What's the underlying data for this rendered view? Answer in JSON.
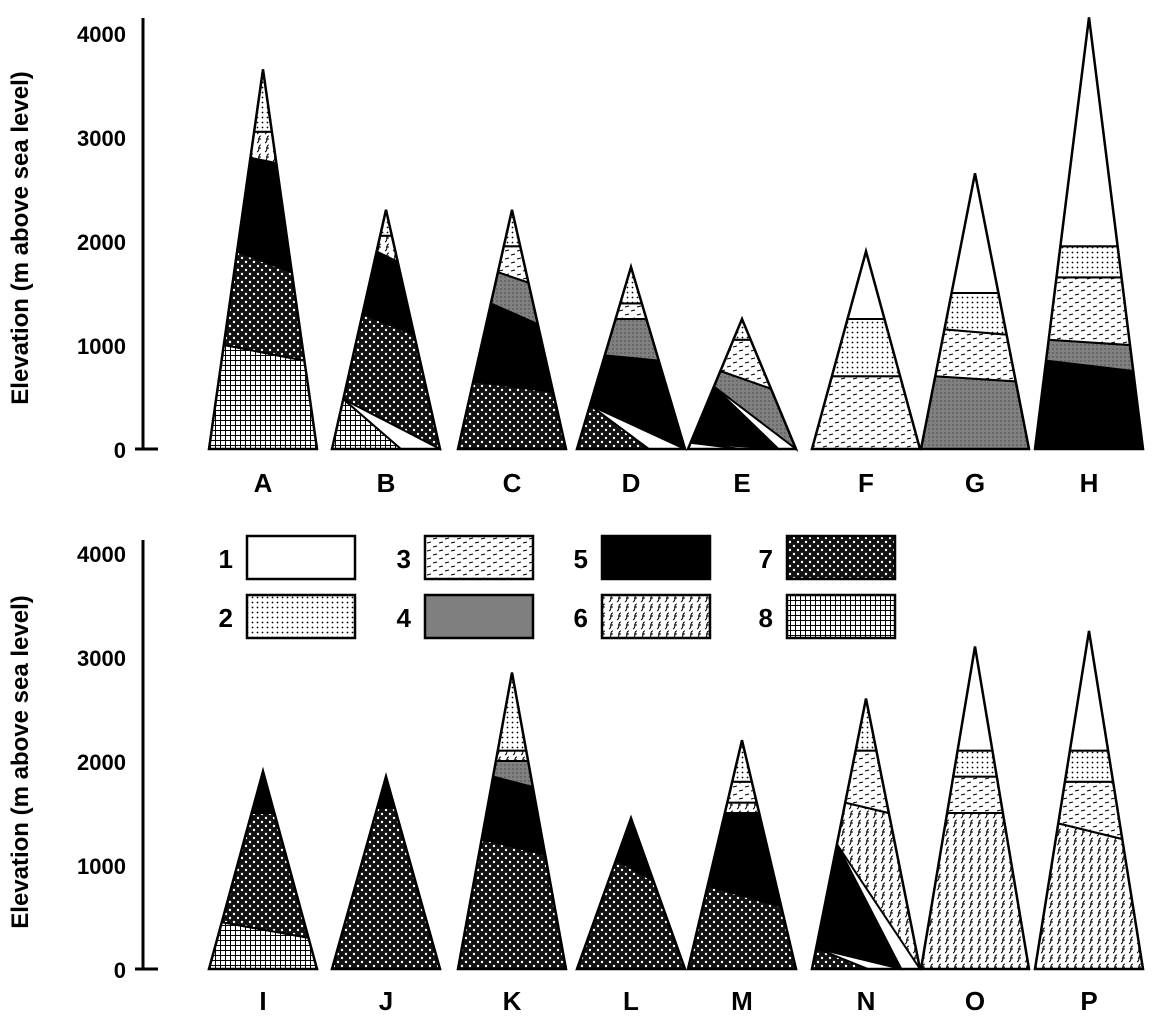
{
  "chart_data": [
    {
      "type": "area",
      "title": "",
      "xlabel": "",
      "ylabel": "Elevation (m above sea level)",
      "ylim": [
        0,
        4200
      ],
      "yticks": [
        0,
        1000,
        2000,
        3000,
        4000
      ],
      "mountains": [
        {
          "name": "A",
          "height": 3650,
          "zones": [
            {
              "zone": 8,
              "l": 0,
              "r": 0,
              "l_top": 1000,
              "r_top": 850
            },
            {
              "zone": 7,
              "l_top": 1900,
              "r_top": 1700
            },
            {
              "zone": 5,
              "l_top": 2800,
              "r_top": 2750
            },
            {
              "zone": 6,
              "l_top": 3050,
              "r_top": 3050
            },
            {
              "zone": 2,
              "l_top": 3650,
              "r_top": 3650
            }
          ]
        },
        {
          "name": "B",
          "height": 2300,
          "zones": [
            {
              "zone": 8,
              "l_top": 480,
              "r_top": 0
            },
            {
              "zone": 7,
              "l_top": 1300,
              "r_top": 1100
            },
            {
              "zone": 5,
              "l_top": 1900,
              "r_top": 1800
            },
            {
              "zone": 6,
              "l_top": 2050,
              "r_top": 2050
            },
            {
              "zone": 2,
              "l_top": 2300,
              "r_top": 2300
            }
          ]
        },
        {
          "name": "C",
          "height": 2300,
          "zones": [
            {
              "zone": 7,
              "l_top": 650,
              "r_top": 550
            },
            {
              "zone": 5,
              "l_top": 1400,
              "r_top": 1200
            },
            {
              "zone": 4,
              "l_top": 1700,
              "r_top": 1600
            },
            {
              "zone": 3,
              "l_top": 1950,
              "r_top": 1950
            },
            {
              "zone": 2,
              "l_top": 2300,
              "r_top": 2300
            }
          ]
        },
        {
          "name": "D",
          "height": 1750,
          "zones": [
            {
              "zone": 7,
              "l_top": 420,
              "r_top": 0
            },
            {
              "zone": 5,
              "l_top": 900,
              "r_top": 850
            },
            {
              "zone": 4,
              "l_top": 1250,
              "r_top": 1250
            },
            {
              "zone": 3,
              "l_top": 1400,
              "r_top": 1400
            },
            {
              "zone": 2,
              "l_top": 1750,
              "r_top": 1750
            }
          ]
        },
        {
          "name": "E",
          "height": 1250,
          "zones": [
            {
              "zone": 1,
              "l_top": 60,
              "r_top": 0
            },
            {
              "zone": 5,
              "l_top": 600,
              "r_top": 0
            },
            {
              "zone": 4,
              "l_top": 750,
              "r_top": 580
            },
            {
              "zone": 3,
              "l_top": 1050,
              "r_top": 1050
            },
            {
              "zone": 2,
              "l_top": 1250,
              "r_top": 1250
            }
          ]
        },
        {
          "name": "F",
          "height": 1900,
          "zones": [
            {
              "zone": 3,
              "l_top": 700,
              "r_top": 700
            },
            {
              "zone": 2,
              "l_top": 1250,
              "r_top": 1250
            },
            {
              "zone": 1,
              "l_top": 1900,
              "r_top": 1900
            }
          ]
        },
        {
          "name": "G",
          "height": 2650,
          "zones": [
            {
              "zone": 4,
              "l_top": 700,
              "r_top": 650
            },
            {
              "zone": 3,
              "l_top": 1150,
              "r_top": 1100
            },
            {
              "zone": 2,
              "l_top": 1500,
              "r_top": 1500
            },
            {
              "zone": 1,
              "l_top": 2650,
              "r_top": 2650
            }
          ]
        },
        {
          "name": "H",
          "height": 4150,
          "zones": [
            {
              "zone": 5,
              "l_top": 850,
              "r_top": 750
            },
            {
              "zone": 4,
              "l_top": 1050,
              "r_top": 1000
            },
            {
              "zone": 3,
              "l_top": 1650,
              "r_top": 1650
            },
            {
              "zone": 2,
              "l_top": 1950,
              "r_top": 1950
            },
            {
              "zone": 1,
              "l_top": 4150,
              "r_top": 4150
            }
          ]
        }
      ]
    },
    {
      "type": "area",
      "title": "",
      "xlabel": "",
      "ylabel": "Elevation (m above sea level)",
      "ylim": [
        0,
        4200
      ],
      "yticks": [
        0,
        1000,
        2000,
        3000,
        4000
      ],
      "mountains": [
        {
          "name": "I",
          "height": 1900,
          "zones": [
            {
              "zone": 8,
              "l_top": 450,
              "r_top": 300
            },
            {
              "zone": 7,
              "l_top": 1500,
              "r_top": 1500
            },
            {
              "zone": 5,
              "l_top": 1900,
              "r_top": 1900
            }
          ]
        },
        {
          "name": "J",
          "height": 1850,
          "zones": [
            {
              "zone": 7,
              "l_top": 1550,
              "r_top": 1550
            },
            {
              "zone": 5,
              "l_top": 1850,
              "r_top": 1850
            }
          ]
        },
        {
          "name": "K",
          "height": 2850,
          "zones": [
            {
              "zone": 7,
              "l_top": 1250,
              "r_top": 1100
            },
            {
              "zone": 5,
              "l_top": 1850,
              "r_top": 1750
            },
            {
              "zone": 4,
              "l_top": 2000,
              "r_top": 2000
            },
            {
              "zone": 6,
              "l_top": 2100,
              "r_top": 2100
            },
            {
              "zone": 2,
              "l_top": 2850,
              "r_top": 2850
            }
          ]
        },
        {
          "name": "L",
          "height": 1450,
          "zones": [
            {
              "zone": 7,
              "l_top": 1050,
              "r_top": 850
            },
            {
              "zone": 5,
              "l_top": 1450,
              "r_top": 1450
            }
          ]
        },
        {
          "name": "M",
          "height": 2200,
          "zones": [
            {
              "zone": 7,
              "l_top": 800,
              "r_top": 600
            },
            {
              "zone": 5,
              "l_top": 1500,
              "r_top": 1500
            },
            {
              "zone": 6,
              "l_top": 1600,
              "r_top": 1600
            },
            {
              "zone": 3,
              "l_top": 1800,
              "r_top": 1800
            },
            {
              "zone": 2,
              "l_top": 2200,
              "r_top": 2200
            }
          ]
        },
        {
          "name": "N",
          "height": 2600,
          "zones": [
            {
              "zone": 7,
              "l_top": 200,
              "r_top": 0
            },
            {
              "zone": 5,
              "l_top": 1200,
              "r_top": 0
            },
            {
              "zone": 6,
              "l_top": 1600,
              "r_top": 1500
            },
            {
              "zone": 3,
              "l_top": 2100,
              "r_top": 2100
            },
            {
              "zone": 2,
              "l_top": 2600,
              "r_top": 2600
            }
          ]
        },
        {
          "name": "O",
          "height": 3100,
          "zones": [
            {
              "zone": 6,
              "l_top": 1500,
              "r_top": 1500
            },
            {
              "zone": 3,
              "l_top": 1850,
              "r_top": 1850
            },
            {
              "zone": 2,
              "l_top": 2100,
              "r_top": 2100
            },
            {
              "zone": 1,
              "l_top": 3100,
              "r_top": 3100
            }
          ]
        },
        {
          "name": "P",
          "height": 3250,
          "zones": [
            {
              "zone": 6,
              "l_top": 1400,
              "r_top": 1250
            },
            {
              "zone": 3,
              "l_top": 1800,
              "r_top": 1800
            },
            {
              "zone": 2,
              "l_top": 2100,
              "r_top": 2100
            },
            {
              "zone": 1,
              "l_top": 3250,
              "r_top": 3250
            }
          ]
        }
      ]
    }
  ],
  "legend": [
    {
      "label": "1",
      "fill": "#ffffff"
    },
    {
      "label": "2",
      "fill": "pattern-dots"
    },
    {
      "label": "3",
      "fill": "pattern-dashes"
    },
    {
      "label": "4",
      "fill": "#7f7f7f"
    },
    {
      "label": "5",
      "fill": "#000000"
    },
    {
      "label": "6",
      "fill": "pattern-hooks"
    },
    {
      "label": "7",
      "fill": "pattern-white-dots"
    },
    {
      "label": "8",
      "fill": "pattern-grid"
    }
  ]
}
